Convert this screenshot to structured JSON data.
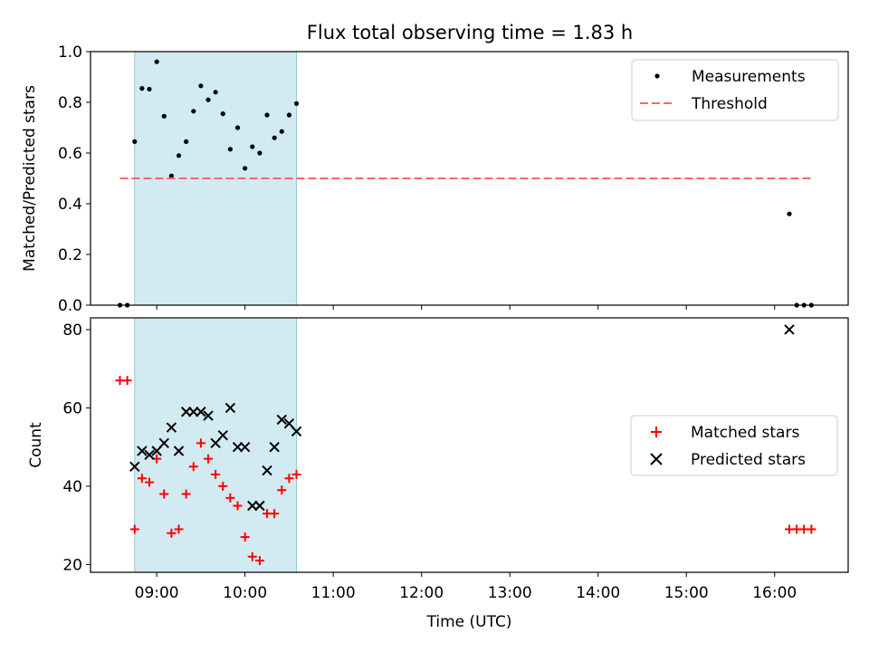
{
  "title": "Flux total observing time = 1.83 h",
  "chart_data": [
    {
      "type": "scatter",
      "xlabel": "",
      "ylabel": "Matched/Predicted stars",
      "xlim": [
        "08:15",
        "16:50"
      ],
      "ylim": [
        0,
        1.0
      ],
      "yticks": [
        "0.0",
        "0.2",
        "0.4",
        "0.6",
        "0.8",
        "1.0"
      ],
      "legend_position": "top-right",
      "shaded_interval": {
        "start": "08:45",
        "end": "10:35",
        "color": "#add8e6"
      },
      "series": [
        {
          "name": "Measurements",
          "color": "#000000",
          "points": [
            [
              "08:35",
              0.0
            ],
            [
              "08:40",
              0.0
            ],
            [
              "08:45",
              0.645
            ],
            [
              "08:50",
              0.855
            ],
            [
              "08:55",
              0.852
            ],
            [
              "09:00",
              0.96
            ],
            [
              "09:05",
              0.745
            ],
            [
              "09:10",
              0.51
            ],
            [
              "09:15",
              0.59
            ],
            [
              "09:20",
              0.645
            ],
            [
              "09:25",
              0.765
            ],
            [
              "09:30",
              0.865
            ],
            [
              "09:35",
              0.81
            ],
            [
              "09:40",
              0.84
            ],
            [
              "09:45",
              0.755
            ],
            [
              "09:50",
              0.615
            ],
            [
              "09:55",
              0.7
            ],
            [
              "10:00",
              0.54
            ],
            [
              "10:05",
              0.625
            ],
            [
              "10:10",
              0.6
            ],
            [
              "10:15",
              0.75
            ],
            [
              "10:20",
              0.66
            ],
            [
              "10:25",
              0.685
            ],
            [
              "10:30",
              0.75
            ],
            [
              "10:35",
              0.795
            ],
            [
              "16:10",
              0.36
            ],
            [
              "16:15",
              0.0
            ],
            [
              "16:20",
              0.0
            ],
            [
              "16:25",
              0.0
            ]
          ]
        },
        {
          "name": "Threshold",
          "color": "#ff6666",
          "style": "dashed",
          "points": [
            [
              "08:35",
              0.5
            ],
            [
              "16:25",
              0.5
            ]
          ]
        }
      ]
    },
    {
      "type": "scatter",
      "xlabel": "Time (UTC)",
      "ylabel": "Count",
      "xlim": [
        "08:15",
        "16:50"
      ],
      "ylim": [
        18,
        83
      ],
      "yticks": [
        "20",
        "40",
        "60",
        "80"
      ],
      "xticks": [
        "09:00",
        "10:00",
        "11:00",
        "12:00",
        "13:00",
        "14:00",
        "15:00",
        "16:00"
      ],
      "legend_position": "center-right",
      "shaded_interval": {
        "start": "08:45",
        "end": "10:35",
        "color": "#add8e6"
      },
      "series": [
        {
          "name": "Matched stars",
          "color": "#ff0000",
          "marker": "+",
          "points": [
            [
              "08:35",
              67
            ],
            [
              "08:40",
              67
            ],
            [
              "08:45",
              29
            ],
            [
              "08:50",
              42
            ],
            [
              "08:55",
              41
            ],
            [
              "09:00",
              47
            ],
            [
              "09:05",
              38
            ],
            [
              "09:10",
              28
            ],
            [
              "09:15",
              29
            ],
            [
              "09:20",
              38
            ],
            [
              "09:25",
              45
            ],
            [
              "09:30",
              51
            ],
            [
              "09:35",
              47
            ],
            [
              "09:40",
              43
            ],
            [
              "09:45",
              40
            ],
            [
              "09:50",
              37
            ],
            [
              "09:55",
              35
            ],
            [
              "10:00",
              27
            ],
            [
              "10:05",
              22
            ],
            [
              "10:10",
              21
            ],
            [
              "10:15",
              33
            ],
            [
              "10:20",
              33
            ],
            [
              "10:25",
              39
            ],
            [
              "10:30",
              42
            ],
            [
              "10:35",
              43
            ],
            [
              "16:10",
              29
            ],
            [
              "16:15",
              29
            ],
            [
              "16:20",
              29
            ],
            [
              "16:25",
              29
            ]
          ]
        },
        {
          "name": "Predicted stars",
          "color": "#000000",
          "marker": "x",
          "points": [
            [
              "08:45",
              45
            ],
            [
              "08:50",
              49
            ],
            [
              "08:55",
              48
            ],
            [
              "09:00",
              49
            ],
            [
              "09:05",
              51
            ],
            [
              "09:10",
              55
            ],
            [
              "09:15",
              49
            ],
            [
              "09:20",
              59
            ],
            [
              "09:25",
              59
            ],
            [
              "09:30",
              59
            ],
            [
              "09:35",
              58
            ],
            [
              "09:40",
              51
            ],
            [
              "09:45",
              53
            ],
            [
              "09:50",
              60
            ],
            [
              "09:55",
              50
            ],
            [
              "10:00",
              50
            ],
            [
              "10:05",
              35
            ],
            [
              "10:10",
              35
            ],
            [
              "10:15",
              44
            ],
            [
              "10:20",
              50
            ],
            [
              "10:25",
              57
            ],
            [
              "10:30",
              56
            ],
            [
              "10:35",
              54
            ],
            [
              "16:10",
              80
            ]
          ]
        }
      ]
    }
  ]
}
